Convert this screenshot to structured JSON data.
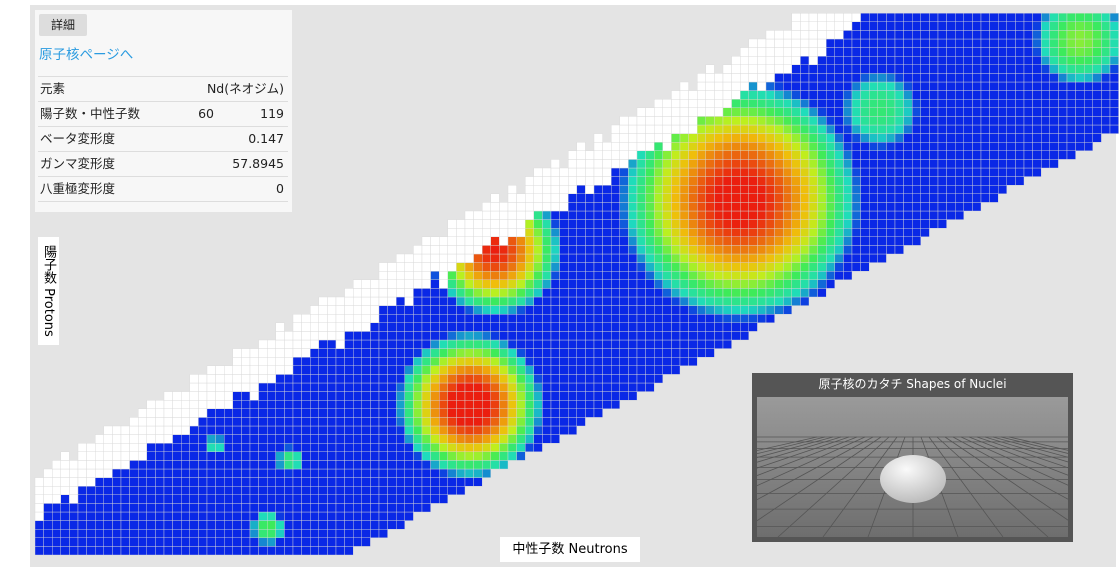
{
  "details": {
    "button": "詳細",
    "link": "原子核ページへ",
    "rows": [
      {
        "label": "元素",
        "value": "Nd(ネオジム)"
      },
      {
        "label": "陽子数・中性子数",
        "protons": 60,
        "neutrons": 119
      },
      {
        "label": "ベータ変形度",
        "value": 0.147
      },
      {
        "label": "ガンマ変形度",
        "value": 57.8945
      },
      {
        "label": "八重極変形度",
        "value": 0
      }
    ]
  },
  "axes": {
    "y_label": "陽子数 Protons",
    "x_label": "中性子数 Neutrons"
  },
  "viewer": {
    "title": "原子核のカタチ Shapes of Nuclei"
  }
}
